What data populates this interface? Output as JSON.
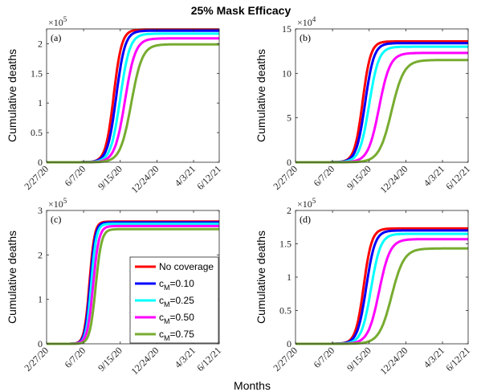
{
  "figure": {
    "title": "25% Mask Efficacy",
    "xlabel": "Months"
  },
  "chart_data": [
    {
      "type": "line",
      "panel_label": "(a)",
      "title": "",
      "xlabel": "",
      "ylabel": "Cumulative deaths",
      "x_ticks": [
        "2/27/20",
        "6/7/20",
        "9/15/20",
        "12/24/20",
        "4/3/21",
        "6/12/21"
      ],
      "x_tick_days": [
        0,
        101,
        201,
        301,
        401,
        471
      ],
      "xlim_days": [
        0,
        471
      ],
      "y_multiplier": "×10",
      "y_multiplier_exp": "5",
      "y_ticks": [
        "0",
        "0.5",
        "1",
        "1.5",
        "2"
      ],
      "y_tick_values": [
        0,
        0.5,
        1,
        1.5,
        2
      ],
      "ylim": [
        0,
        2.25
      ],
      "series": [
        {
          "name": "No coverage",
          "color": "#ff0000",
          "plateau": 2.24,
          "midpoint_day": 183,
          "width_days": 11
        },
        {
          "name": "c_M=0.10",
          "color": "#0000ff",
          "plateau": 2.22,
          "midpoint_day": 190,
          "width_days": 12
        },
        {
          "name": "c_M=0.25",
          "color": "#00ffff",
          "plateau": 2.17,
          "midpoint_day": 201,
          "width_days": 13
        },
        {
          "name": "c_M=0.50",
          "color": "#ff00ff",
          "plateau": 2.09,
          "midpoint_day": 214,
          "width_days": 14
        },
        {
          "name": "c_M=0.75",
          "color": "#77ac30",
          "plateau": 1.99,
          "midpoint_day": 231,
          "width_days": 15
        }
      ]
    },
    {
      "type": "line",
      "panel_label": "(b)",
      "title": "",
      "xlabel": "",
      "ylabel": "Cumulative deaths",
      "x_ticks": [
        "2/27/20",
        "6/7/20",
        "9/15/20",
        "12/24/20",
        "4/3/21",
        "6/12/21"
      ],
      "x_tick_days": [
        0,
        101,
        201,
        301,
        401,
        471
      ],
      "xlim_days": [
        0,
        471
      ],
      "y_multiplier": "×10",
      "y_multiplier_exp": "4",
      "y_ticks": [
        "0",
        "5",
        "10",
        "15"
      ],
      "y_tick_values": [
        0,
        5,
        10,
        15
      ],
      "ylim": [
        0,
        15
      ],
      "series": [
        {
          "name": "No coverage",
          "color": "#ff0000",
          "plateau": 13.6,
          "midpoint_day": 183,
          "width_days": 11
        },
        {
          "name": "c_M=0.10",
          "color": "#0000ff",
          "plateau": 13.4,
          "midpoint_day": 190,
          "width_days": 12
        },
        {
          "name": "c_M=0.25",
          "color": "#00ffff",
          "plateau": 13.0,
          "midpoint_day": 201,
          "width_days": 13
        },
        {
          "name": "c_M=0.50",
          "color": "#ff00ff",
          "plateau": 12.3,
          "midpoint_day": 228,
          "width_days": 15
        },
        {
          "name": "c_M=0.75",
          "color": "#77ac30",
          "plateau": 11.5,
          "midpoint_day": 262,
          "width_days": 17
        }
      ]
    },
    {
      "type": "line",
      "panel_label": "(c)",
      "title": "",
      "xlabel": "",
      "ylabel": "Cumulative deaths",
      "x_ticks": [
        "2/27/20",
        "6/7/20",
        "9/15/20",
        "12/24/20",
        "4/3/21",
        "6/12/21"
      ],
      "x_tick_days": [
        0,
        101,
        201,
        301,
        401,
        471
      ],
      "xlim_days": [
        0,
        471
      ],
      "y_multiplier": "×10",
      "y_multiplier_exp": "5",
      "y_ticks": [
        "0",
        "1",
        "2",
        "3"
      ],
      "y_tick_values": [
        0,
        1,
        2,
        3
      ],
      "ylim": [
        0,
        3
      ],
      "series": [
        {
          "name": "No coverage",
          "color": "#ff0000",
          "plateau": 2.75,
          "midpoint_day": 117,
          "width_days": 7
        },
        {
          "name": "c_M=0.10",
          "color": "#0000ff",
          "plateau": 2.73,
          "midpoint_day": 119,
          "width_days": 7
        },
        {
          "name": "c_M=0.25",
          "color": "#00ffff",
          "plateau": 2.7,
          "midpoint_day": 122,
          "width_days": 7
        },
        {
          "name": "c_M=0.50",
          "color": "#ff00ff",
          "plateau": 2.65,
          "midpoint_day": 127,
          "width_days": 8
        },
        {
          "name": "c_M=0.75",
          "color": "#77ac30",
          "plateau": 2.58,
          "midpoint_day": 134,
          "width_days": 8
        }
      ]
    },
    {
      "type": "line",
      "panel_label": "(d)",
      "title": "",
      "xlabel": "",
      "ylabel": "Cumulative deaths",
      "x_ticks": [
        "2/27/20",
        "6/7/20",
        "9/15/20",
        "12/24/20",
        "4/3/21",
        "6/12/21"
      ],
      "x_tick_days": [
        0,
        101,
        201,
        301,
        401,
        471
      ],
      "xlim_days": [
        0,
        471
      ],
      "y_multiplier": "×10",
      "y_multiplier_exp": "5",
      "y_ticks": [
        "0",
        "0.5",
        "1",
        "1.5",
        "2"
      ],
      "y_tick_values": [
        0,
        0.5,
        1,
        1.5,
        2
      ],
      "ylim": [
        0,
        2
      ],
      "series": [
        {
          "name": "No coverage",
          "color": "#ff0000",
          "plateau": 1.73,
          "midpoint_day": 186,
          "width_days": 11
        },
        {
          "name": "c_M=0.10",
          "color": "#0000ff",
          "plateau": 1.7,
          "midpoint_day": 193,
          "width_days": 12
        },
        {
          "name": "c_M=0.25",
          "color": "#00ffff",
          "plateau": 1.65,
          "midpoint_day": 206,
          "width_days": 13
        },
        {
          "name": "c_M=0.50",
          "color": "#ff00ff",
          "plateau": 1.57,
          "midpoint_day": 228,
          "width_days": 15
        },
        {
          "name": "c_M=0.75",
          "color": "#77ac30",
          "plateau": 1.43,
          "midpoint_day": 262,
          "width_days": 17
        }
      ]
    }
  ],
  "legend": {
    "panel": "(c)",
    "placement": "bottom-right",
    "entries": [
      {
        "main": "No coverage",
        "sub": "",
        "suffix": "",
        "color": "#ff0000"
      },
      {
        "main": "c",
        "sub": "M",
        "suffix": "=0.10",
        "color": "#0000ff"
      },
      {
        "main": "c",
        "sub": "M",
        "suffix": "=0.25",
        "color": "#00ffff"
      },
      {
        "main": "c",
        "sub": "M",
        "suffix": "=0.50",
        "color": "#ff00ff"
      },
      {
        "main": "c",
        "sub": "M",
        "suffix": "=0.75",
        "color": "#77ac30"
      }
    ]
  }
}
